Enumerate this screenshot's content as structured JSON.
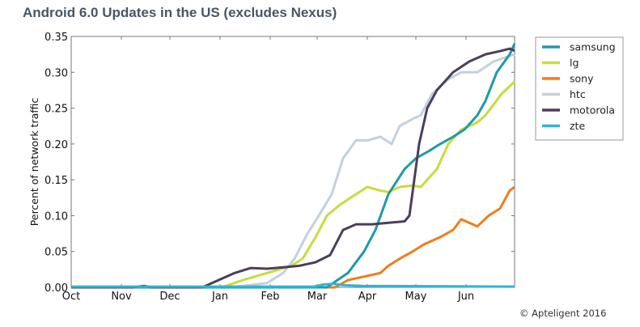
{
  "chart_data": {
    "type": "line",
    "title": "Android 6.0 Updates in the US (excludes Nexus)",
    "xlabel": "",
    "ylabel": "Percent of network traffic",
    "x_unit": "days since Oct 1 2015",
    "xlim": [
      0,
      274
    ],
    "ylim": [
      0,
      0.35
    ],
    "yticks": [
      "0.00",
      "0.05",
      "0.10",
      "0.15",
      "0.20",
      "0.25",
      "0.30",
      "0.35"
    ],
    "ytick_values": [
      0,
      0.05,
      0.1,
      0.15,
      0.2,
      0.25,
      0.3,
      0.35
    ],
    "xticks": [
      "Oct",
      "Nov",
      "Dec",
      "Jan",
      "Feb",
      "Mar",
      "Apr",
      "May",
      "Jun"
    ],
    "xtick_values": [
      0,
      31,
      61,
      92,
      123,
      152,
      183,
      213,
      244
    ],
    "legend_placement": "outside-right",
    "series": [
      {
        "name": "samsung",
        "color": "#1f9aa8",
        "x": [
          0,
          158,
          171,
          181,
          188,
          196,
          206,
          213,
          221,
          228,
          236,
          243,
          251,
          256,
          263,
          271,
          274
        ],
        "y": [
          0,
          0,
          0.02,
          0.05,
          0.08,
          0.13,
          0.165,
          0.18,
          0.19,
          0.2,
          0.21,
          0.22,
          0.24,
          0.26,
          0.3,
          0.325,
          0.34
        ]
      },
      {
        "name": "lg",
        "color": "#c8dc3c",
        "x": [
          0,
          93,
          106,
          121,
          136,
          143,
          151,
          158,
          166,
          176,
          183,
          191,
          196,
          203,
          211,
          216,
          226,
          233,
          241,
          246,
          251,
          256,
          266,
          274
        ],
        "y": [
          0,
          0,
          0.01,
          0.02,
          0.03,
          0.04,
          0.07,
          0.1,
          0.115,
          0.13,
          0.14,
          0.135,
          0.133,
          0.14,
          0.142,
          0.14,
          0.165,
          0.2,
          0.22,
          0.225,
          0.23,
          0.24,
          0.27,
          0.287
        ]
      },
      {
        "name": "sony",
        "color": "#ef7d1a",
        "x": [
          0,
          163,
          171,
          181,
          191,
          196,
          203,
          211,
          218,
          228,
          236,
          241,
          246,
          251,
          258,
          265,
          271,
          274
        ],
        "y": [
          0,
          0,
          0.01,
          0.015,
          0.02,
          0.03,
          0.04,
          0.05,
          0.06,
          0.07,
          0.08,
          0.095,
          0.09,
          0.085,
          0.1,
          0.11,
          0.135,
          0.14
        ]
      },
      {
        "name": "htc",
        "color": "#c5d0da",
        "x": [
          0,
          95,
          106,
          121,
          131,
          138,
          146,
          153,
          161,
          168,
          176,
          183,
          191,
          198,
          203,
          211,
          216,
          223,
          233,
          241,
          251,
          261,
          274
        ],
        "y": [
          0,
          0,
          0.002,
          0.006,
          0.02,
          0.04,
          0.075,
          0.1,
          0.13,
          0.18,
          0.205,
          0.205,
          0.21,
          0.2,
          0.225,
          0.235,
          0.24,
          0.27,
          0.29,
          0.3,
          0.3,
          0.315,
          0.325
        ]
      },
      {
        "name": "motorola",
        "color": "#4b3f5c",
        "x": [
          0,
          38,
          45,
          50,
          81,
          91,
          101,
          111,
          121,
          131,
          141,
          151,
          160,
          168,
          176,
          186,
          196,
          206,
          209,
          212,
          215,
          220,
          226,
          236,
          246,
          256,
          266,
          271,
          274
        ],
        "y": [
          0,
          0,
          0.002,
          0,
          0,
          0.01,
          0.02,
          0.027,
          0.026,
          0.028,
          0.03,
          0.035,
          0.045,
          0.08,
          0.088,
          0.088,
          0.09,
          0.092,
          0.1,
          0.15,
          0.2,
          0.25,
          0.275,
          0.3,
          0.315,
          0.325,
          0.33,
          0.333,
          0.33
        ]
      },
      {
        "name": "zte",
        "color": "#2fb5d6",
        "x": [
          0,
          150,
          156,
          162,
          168,
          180,
          274
        ],
        "y": [
          0.001,
          0.001,
          0.004,
          0.005,
          0.003,
          0.002,
          0.001
        ]
      }
    ]
  },
  "copyright": "© Apteligent 2016"
}
